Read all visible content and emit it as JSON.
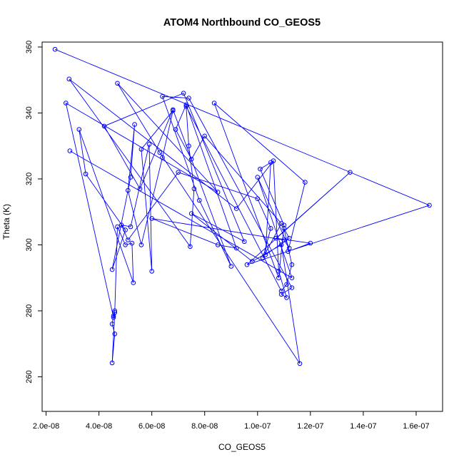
{
  "chart_data": {
    "type": "line",
    "markers": "open-circle",
    "title": "ATOM4 Northbound CO_GEOS5",
    "xlabel": "CO_GEOS5",
    "ylabel": "Theta (K)",
    "xlim": [
      1.85e-08,
      1.7e-07
    ],
    "ylim": [
      249.5,
      361.5
    ],
    "grid": false,
    "line_color": "#0000FF",
    "x_ticks": [
      2e-08,
      4e-08,
      6e-08,
      8e-08,
      1e-07,
      1.2e-07,
      1.4e-07,
      1.6e-07
    ],
    "x_tick_labels": [
      "2.0e-08",
      "4.0e-08",
      "6.0e-08",
      "8.0e-08",
      "1.0e-07",
      "1.2e-07",
      "1.4e-07",
      "1.6e-07"
    ],
    "y_ticks": [
      260,
      280,
      300,
      320,
      340,
      360
    ],
    "y_tick_labels": [
      "260",
      "280",
      "300",
      "320",
      "340",
      "360"
    ],
    "series": [
      {
        "x": [
          2.34e-08,
          1.65e-07,
          9.6e-08,
          1.35e-07,
          1.07e-07,
          1.2e-07,
          1.115e-07,
          1.18e-07,
          8.36e-08,
          1.08e-07,
          1.1e-07,
          1.01e-07,
          1.05e-07,
          1.03e-07,
          1.12e-07,
          1.1e-07,
          1.13e-07,
          1.11e-07,
          1.09e-07,
          7.3e-08,
          7.4e-08,
          7.6e-08,
          7.45e-08,
          2.87e-08,
          9.2e-08,
          1.06e-07,
          1.08e-07,
          1.11e-07,
          1.09e-07,
          1.13e-07,
          7.4e-08,
          6.4e-08,
          7.8e-08,
          9e-08,
          6.8e-08,
          5.55e-08,
          4.2e-08,
          7.2e-08,
          9.5e-08,
          7.5e-08,
          9.8e-08,
          1.09e-07,
          1.16e-07,
          6.3e-08,
          4.7e-08,
          8.5e-08,
          2.75e-08,
          4.55e-08,
          4.6e-08,
          4.5e-08,
          4.6e-08,
          4.5e-08,
          4.55e-08,
          4.6e-08,
          4.7e-08,
          5e-08,
          5.25e-08,
          5.3e-08,
          3.25e-08,
          3.5e-08,
          5e-08,
          4.5e-08,
          5.2e-08,
          5.35e-08,
          5.1e-08,
          5.6e-08,
          6.4e-08,
          6.8e-08,
          5.6e-08,
          6e-08,
          5.9e-08,
          5.2e-08,
          4.85e-08,
          5.1e-08,
          7e-08,
          1e-07,
          1.05e-07,
          1.02e-07,
          1.09e-07,
          8e-08,
          7.5e-08,
          6.9e-08,
          7.3e-08,
          9.2e-08,
          8.5e-08,
          6e-08,
          1.1e-07,
          1.12e-07,
          1e-07,
          1.13e-07,
          2.9e-08
        ],
        "y": [
          359.3,
          312.0,
          294.0,
          322.0,
          302.0,
          300.5,
          298.0,
          319.0,
          343.0,
          290.0,
          306.0,
          323.0,
          325.0,
          297.0,
          302.0,
          305.0,
          294.0,
          288.0,
          286.0,
          342.0,
          330.0,
          317.0,
          299.5,
          350.3,
          311.0,
          325.5,
          292.0,
          284.0,
          285.0,
          287.0,
          344.5,
          345.0,
          313.5,
          293.5,
          341.0,
          317.0,
          336.0,
          346.0,
          301.0,
          309.5,
          295.0,
          300.0,
          264.0,
          328.0,
          349.0,
          316.0,
          343.0,
          278.0,
          279.5,
          264.2,
          273.0,
          276.0,
          278.5,
          280.0,
          305.5,
          300.0,
          300.5,
          288.5,
          335.0,
          321.5,
          304.5,
          292.5,
          320.5,
          336.5,
          316.5,
          300.0,
          326.5,
          340.7,
          329.0,
          292.0,
          330.5,
          305.5,
          306.0,
          301.5,
          322.0,
          314.0,
          305.0,
          296.0,
          306.5,
          333.0,
          326.0,
          335.0,
          342.5,
          299.0,
          300.0,
          308.0,
          301.5,
          299.0,
          320.5,
          290.0,
          328.5
        ]
      }
    ]
  }
}
